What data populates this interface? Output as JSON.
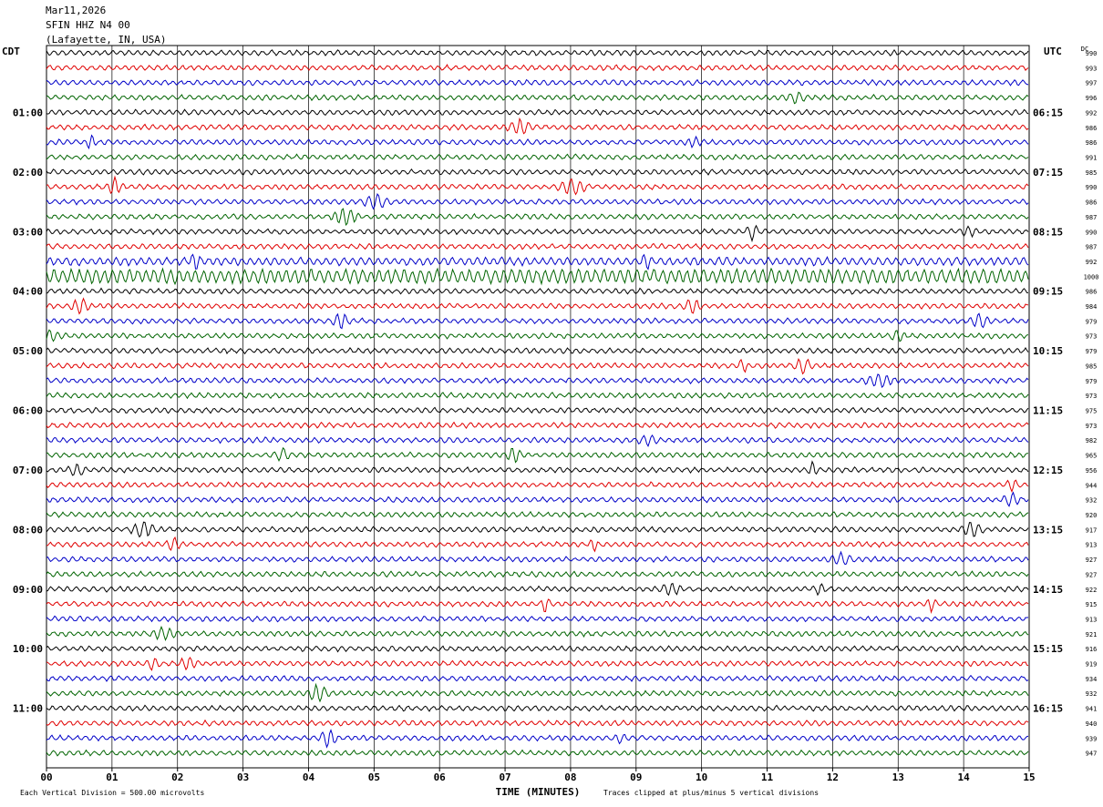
{
  "header": {
    "date": "Mar11,2026",
    "station": "SFIN HHZ N4 00",
    "location": "(Lafayette, IN, USA)"
  },
  "left_zone_label": "CDT",
  "right_zone_label": "UTC",
  "dc_label": "DC",
  "footer": {
    "vertical_division": "Each Vertical Division =  500.00 microvolts",
    "clip_note": "Traces clipped at plus/minus 5 vertical divisions"
  },
  "colors": {
    "trace_cycle": [
      "#000000",
      "#e00000",
      "#0000c8",
      "#006400"
    ],
    "grid": "#000000",
    "background": "#ffffff"
  },
  "chart_data": {
    "type": "line",
    "title": "",
    "xlabel": "TIME (MINUTES)",
    "ylabel": "",
    "x_ticks": [
      "00",
      "01",
      "02",
      "03",
      "04",
      "05",
      "06",
      "07",
      "08",
      "09",
      "10",
      "11",
      "12",
      "13",
      "14",
      "15"
    ],
    "xlim": [
      0,
      15
    ],
    "minutes_per_line": 15,
    "lines_per_hour": 4,
    "left_time_labels": [
      "01:00",
      "02:00",
      "03:00",
      "04:00",
      "05:00",
      "06:00",
      "07:00",
      "08:00",
      "09:00",
      "10:00",
      "11:00"
    ],
    "right_time_labels": [
      "06:15",
      "07:15",
      "08:15",
      "09:15",
      "10:15",
      "11:15",
      "12:15",
      "13:15",
      "14:15",
      "15:15",
      "16:15"
    ],
    "dc_offsets": [
      990,
      993,
      997,
      996,
      992,
      986,
      986,
      991,
      985,
      990,
      986,
      987,
      990,
      987,
      992,
      1000,
      986,
      984,
      979,
      973,
      979,
      985,
      979,
      973,
      975,
      973,
      982,
      965,
      956,
      944,
      932,
      920,
      917,
      913,
      927,
      927,
      922,
      915,
      913,
      921,
      916,
      919,
      934,
      932,
      941,
      940,
      939,
      947
    ]
  }
}
